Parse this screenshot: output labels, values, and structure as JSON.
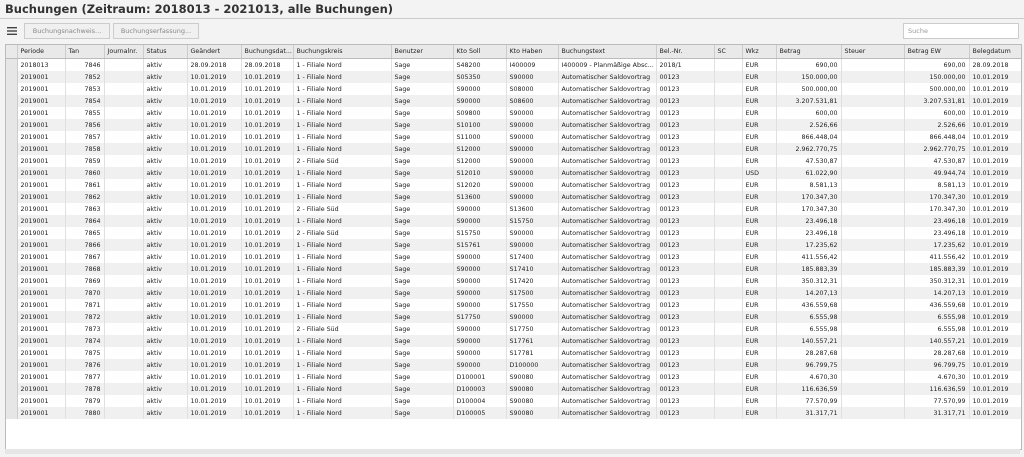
{
  "header": {
    "title": "Buchungen (Zeitraum: 2018013 - 2021013, alle Buchungen)"
  },
  "toolbar": {
    "buttons": [
      "Buchungsnachweis...",
      "Buchungserfassung..."
    ],
    "search_placeholder": "Suche"
  },
  "table": {
    "columns": [
      "Periode",
      "Tan",
      "Journalnr.",
      "Status",
      "Geändert",
      "Buchungsdat...",
      "Buchungskreis",
      "Benutzer",
      "Kto Soll",
      "Kto Haben",
      "Buchungstext",
      "Bel.-Nr.",
      "SC",
      "Wkz",
      "Betrag",
      "Steuer",
      "Betrag EW",
      "Belegdatum"
    ],
    "rows": [
      [
        "2018013",
        "7846",
        null,
        "aktiv",
        "28.09.2018",
        "28.09.2018",
        "1 - Filiale Nord",
        "Sage",
        "S48200",
        "I400009",
        "I400009 - Planmäßige Absc...",
        "2018/1",
        null,
        "EUR",
        "690,00",
        null,
        "690,00",
        "28.09.2018"
      ],
      [
        "2019001",
        "7852",
        null,
        "aktiv",
        "10.01.2019",
        "10.01.2019",
        "1 - Filiale Nord",
        "Sage",
        "S05350",
        "S90000",
        "Automatischer Saldovortrag",
        "00123",
        null,
        "EUR",
        "150.000,00",
        null,
        "150.000,00",
        "10.01.2019"
      ],
      [
        "2019001",
        "7853",
        null,
        "aktiv",
        "10.01.2019",
        "10.01.2019",
        "1 - Filiale Nord",
        "Sage",
        "S90000",
        "S08000",
        "Automatischer Saldovortrag",
        "00123",
        null,
        "EUR",
        "500.000,00",
        null,
        "500.000,00",
        "10.01.2019"
      ],
      [
        "2019001",
        "7854",
        null,
        "aktiv",
        "10.01.2019",
        "10.01.2019",
        "1 - Filiale Nord",
        "Sage",
        "S90000",
        "S08600",
        "Automatischer Saldovortrag",
        "00123",
        null,
        "EUR",
        "3.207.531,81",
        null,
        "3.207.531,81",
        "10.01.2019"
      ],
      [
        "2019001",
        "7855",
        null,
        "aktiv",
        "10.01.2019",
        "10.01.2019",
        "1 - Filiale Nord",
        "Sage",
        "S09800",
        "S90000",
        "Automatischer Saldovortrag",
        "00123",
        null,
        "EUR",
        "600,00",
        null,
        "600,00",
        "10.01.2019"
      ],
      [
        "2019001",
        "7856",
        null,
        "aktiv",
        "10.01.2019",
        "10.01.2019",
        "1 - Filiale Nord",
        "Sage",
        "S10100",
        "S90000",
        "Automatischer Saldovortrag",
        "00123",
        null,
        "EUR",
        "2.526,66",
        null,
        "2.526,66",
        "10.01.2019"
      ],
      [
        "2019001",
        "7857",
        null,
        "aktiv",
        "10.01.2019",
        "10.01.2019",
        "1 - Filiale Nord",
        "Sage",
        "S11000",
        "S90000",
        "Automatischer Saldovortrag",
        "00123",
        null,
        "EUR",
        "866.448,04",
        null,
        "866.448,04",
        "10.01.2019"
      ],
      [
        "2019001",
        "7858",
        null,
        "aktiv",
        "10.01.2019",
        "10.01.2019",
        "1 - Filiale Nord",
        "Sage",
        "S12000",
        "S90000",
        "Automatischer Saldovortrag",
        "00123",
        null,
        "EUR",
        "2.962.770,75",
        null,
        "2.962.770,75",
        "10.01.2019"
      ],
      [
        "2019001",
        "7859",
        null,
        "aktiv",
        "10.01.2019",
        "10.01.2019",
        "2 - Filiale Süd",
        "Sage",
        "S12000",
        "S90000",
        "Automatischer Saldovortrag",
        "00123",
        null,
        "EUR",
        "47.530,87",
        null,
        "47.530,87",
        "10.01.2019"
      ],
      [
        "2019001",
        "7860",
        null,
        "aktiv",
        "10.01.2019",
        "10.01.2019",
        "1 - Filiale Nord",
        "Sage",
        "S12010",
        "S90000",
        "Automatischer Saldovortrag",
        "00123",
        null,
        "USD",
        "61.022,90",
        null,
        "49.944,74",
        "10.01.2019"
      ],
      [
        "2019001",
        "7861",
        null,
        "aktiv",
        "10.01.2019",
        "10.01.2019",
        "1 - Filiale Nord",
        "Sage",
        "S12020",
        "S90000",
        "Automatischer Saldovortrag",
        "00123",
        null,
        "EUR",
        "8.581,13",
        null,
        "8.581,13",
        "10.01.2019"
      ],
      [
        "2019001",
        "7862",
        null,
        "aktiv",
        "10.01.2019",
        "10.01.2019",
        "1 - Filiale Nord",
        "Sage",
        "S13600",
        "S90000",
        "Automatischer Saldovortrag",
        "00123",
        null,
        "EUR",
        "170.347,30",
        null,
        "170.347,30",
        "10.01.2019"
      ],
      [
        "2019001",
        "7863",
        null,
        "aktiv",
        "10.01.2019",
        "10.01.2019",
        "2 - Filiale Süd",
        "Sage",
        "S90000",
        "S13600",
        "Automatischer Saldovortrag",
        "00123",
        null,
        "EUR",
        "170.347,30",
        null,
        "170.347,30",
        "10.01.2019"
      ],
      [
        "2019001",
        "7864",
        null,
        "aktiv",
        "10.01.2019",
        "10.01.2019",
        "1 - Filiale Nord",
        "Sage",
        "S90000",
        "S15750",
        "Automatischer Saldovortrag",
        "00123",
        null,
        "EUR",
        "23.496,18",
        null,
        "23.496,18",
        "10.01.2019"
      ],
      [
        "2019001",
        "7865",
        null,
        "aktiv",
        "10.01.2019",
        "10.01.2019",
        "2 - Filiale Süd",
        "Sage",
        "S15750",
        "S90000",
        "Automatischer Saldovortrag",
        "00123",
        null,
        "EUR",
        "23.496,18",
        null,
        "23.496,18",
        "10.01.2019"
      ],
      [
        "2019001",
        "7866",
        null,
        "aktiv",
        "10.01.2019",
        "10.01.2019",
        "1 - Filiale Nord",
        "Sage",
        "S15761",
        "S90000",
        "Automatischer Saldovortrag",
        "00123",
        null,
        "EUR",
        "17.235,62",
        null,
        "17.235,62",
        "10.01.2019"
      ],
      [
        "2019001",
        "7867",
        null,
        "aktiv",
        "10.01.2019",
        "10.01.2019",
        "1 - Filiale Nord",
        "Sage",
        "S90000",
        "S17400",
        "Automatischer Saldovortrag",
        "00123",
        null,
        "EUR",
        "411.556,42",
        null,
        "411.556,42",
        "10.01.2019"
      ],
      [
        "2019001",
        "7868",
        null,
        "aktiv",
        "10.01.2019",
        "10.01.2019",
        "1 - Filiale Nord",
        "Sage",
        "S90000",
        "S17410",
        "Automatischer Saldovortrag",
        "00123",
        null,
        "EUR",
        "185.883,39",
        null,
        "185.883,39",
        "10.01.2019"
      ],
      [
        "2019001",
        "7869",
        null,
        "aktiv",
        "10.01.2019",
        "10.01.2019",
        "1 - Filiale Nord",
        "Sage",
        "S90000",
        "S17420",
        "Automatischer Saldovortrag",
        "00123",
        null,
        "EUR",
        "350.312,31",
        null,
        "350.312,31",
        "10.01.2019"
      ],
      [
        "2019001",
        "7870",
        null,
        "aktiv",
        "10.01.2019",
        "10.01.2019",
        "1 - Filiale Nord",
        "Sage",
        "S90000",
        "S17500",
        "Automatischer Saldovortrag",
        "00123",
        null,
        "EUR",
        "14.207,13",
        null,
        "14.207,13",
        "10.01.2019"
      ],
      [
        "2019001",
        "7871",
        null,
        "aktiv",
        "10.01.2019",
        "10.01.2019",
        "1 - Filiale Nord",
        "Sage",
        "S90000",
        "S17550",
        "Automatischer Saldovortrag",
        "00123",
        null,
        "EUR",
        "436.559,68",
        null,
        "436.559,68",
        "10.01.2019"
      ],
      [
        "2019001",
        "7872",
        null,
        "aktiv",
        "10.01.2019",
        "10.01.2019",
        "1 - Filiale Nord",
        "Sage",
        "S17750",
        "S90000",
        "Automatischer Saldovortrag",
        "00123",
        null,
        "EUR",
        "6.555,98",
        null,
        "6.555,98",
        "10.01.2019"
      ],
      [
        "2019001",
        "7873",
        null,
        "aktiv",
        "10.01.2019",
        "10.01.2019",
        "2 - Filiale Süd",
        "Sage",
        "S90000",
        "S17750",
        "Automatischer Saldovortrag",
        "00123",
        null,
        "EUR",
        "6.555,98",
        null,
        "6.555,98",
        "10.01.2019"
      ],
      [
        "2019001",
        "7874",
        null,
        "aktiv",
        "10.01.2019",
        "10.01.2019",
        "1 - Filiale Nord",
        "Sage",
        "S90000",
        "S17761",
        "Automatischer Saldovortrag",
        "00123",
        null,
        "EUR",
        "140.557,21",
        null,
        "140.557,21",
        "10.01.2019"
      ],
      [
        "2019001",
        "7875",
        null,
        "aktiv",
        "10.01.2019",
        "10.01.2019",
        "1 - Filiale Nord",
        "Sage",
        "S90000",
        "S17781",
        "Automatischer Saldovortrag",
        "00123",
        null,
        "EUR",
        "28.287,68",
        null,
        "28.287,68",
        "10.01.2019"
      ],
      [
        "2019001",
        "7876",
        null,
        "aktiv",
        "10.01.2019",
        "10.01.2019",
        "1 - Filiale Nord",
        "Sage",
        "S90000",
        "D100000",
        "Automatischer Saldovortrag",
        "00123",
        null,
        "EUR",
        "96.799,75",
        null,
        "96.799,75",
        "10.01.2019"
      ],
      [
        "2019001",
        "7877",
        null,
        "aktiv",
        "10.01.2019",
        "10.01.2019",
        "1 - Filiale Nord",
        "Sage",
        "D100001",
        "S90080",
        "Automatischer Saldovortrag",
        "00123",
        null,
        "EUR",
        "4.670,30",
        null,
        "4.670,30",
        "10.01.2019"
      ],
      [
        "2019001",
        "7878",
        null,
        "aktiv",
        "10.01.2019",
        "10.01.2019",
        "1 - Filiale Nord",
        "Sage",
        "D100003",
        "S90080",
        "Automatischer Saldovortrag",
        "00123",
        null,
        "EUR",
        "116.636,59",
        null,
        "116.636,59",
        "10.01.2019"
      ],
      [
        "2019001",
        "7879",
        null,
        "aktiv",
        "10.01.2019",
        "10.01.2019",
        "1 - Filiale Nord",
        "Sage",
        "D100004",
        "S90080",
        "Automatischer Saldovortrag",
        "00123",
        null,
        "EUR",
        "77.570,99",
        null,
        "77.570,99",
        "10.01.2019"
      ],
      [
        "2019001",
        "7880",
        null,
        "aktiv",
        "10.01.2019",
        "10.01.2019",
        "1 - Filiale Nord",
        "Sage",
        "D100005",
        "S90080",
        "Automatischer Saldovortrag",
        "00123",
        null,
        "EUR",
        "31.317,71",
        null,
        "31.317,71",
        "10.01.2019"
      ]
    ]
  }
}
